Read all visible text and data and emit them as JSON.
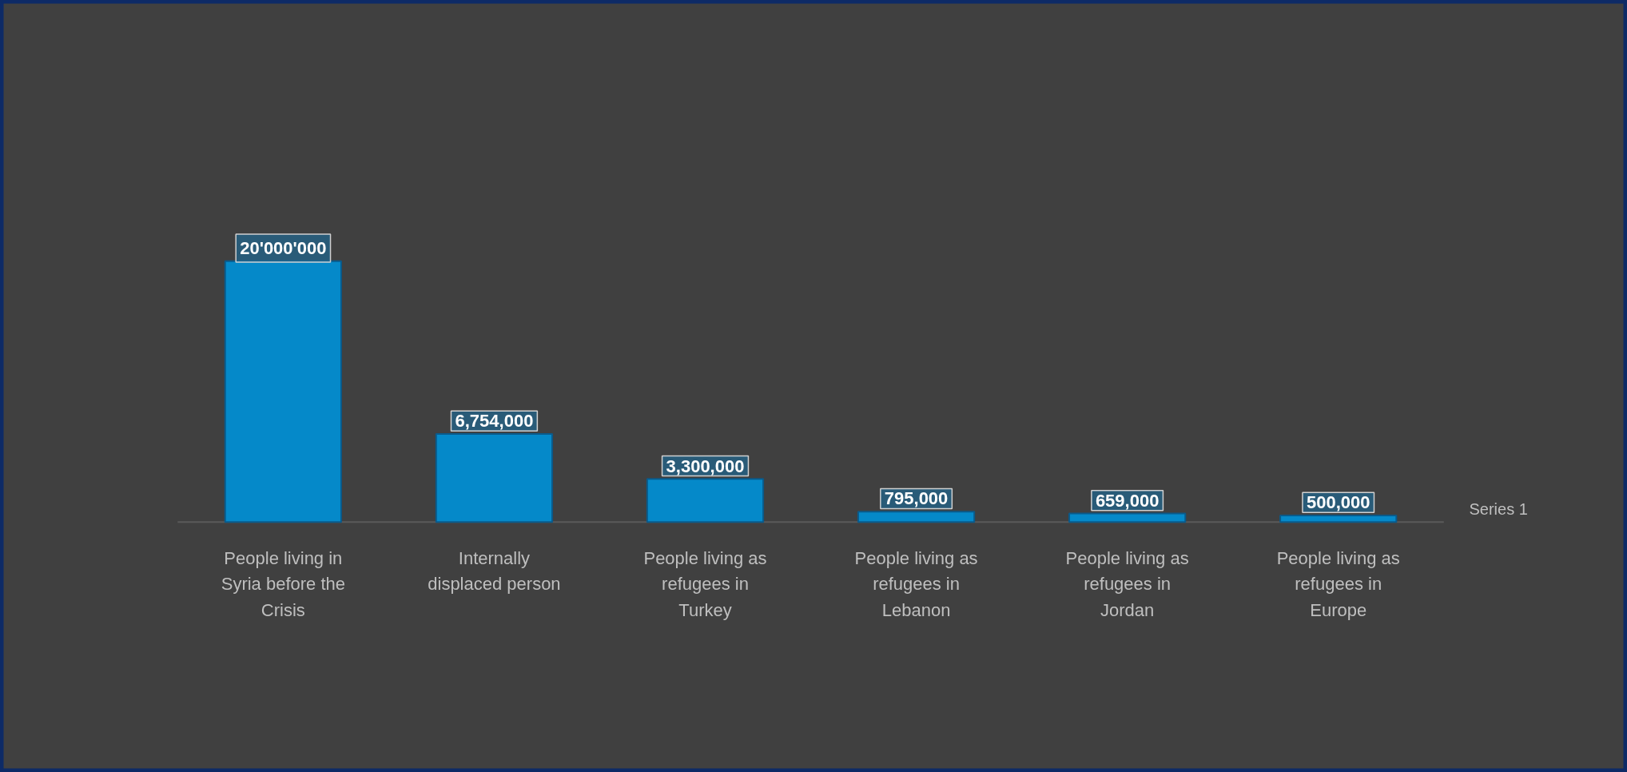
{
  "chart_data": {
    "type": "bar",
    "categories": [
      "People living in Syria before the Crisis",
      "Internally displaced person",
      "People living as refugees in Turkey",
      "People living as refugees in Lebanon",
      "People living as refugees in Jordan",
      "People living as refugees in Europe"
    ],
    "series": [
      {
        "name": "Series 1",
        "color": "#0589c9",
        "values": [
          20000000,
          6754000,
          3300000,
          795000,
          659000,
          500000
        ],
        "value_labels": [
          "20'000'000",
          "6,754,000",
          "3,300,000",
          "795,000",
          "659,000",
          "500,000"
        ]
      }
    ]
  }
}
